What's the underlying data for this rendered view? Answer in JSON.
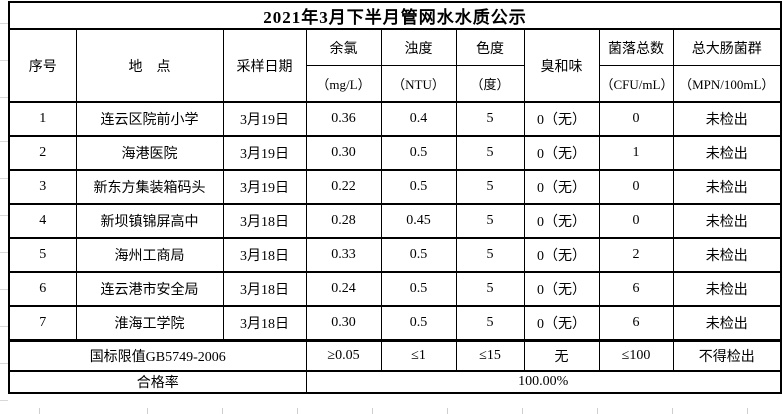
{
  "title": "2021年3月下半月管网水水质公示",
  "colors": {
    "text": "#000000",
    "background": "#ffffff",
    "border": "#000000",
    "sheet_gridline": "#cfcfcf"
  },
  "table": {
    "column_keys": [
      "no",
      "location",
      "date",
      "chlorine",
      "turbidity",
      "color",
      "odor",
      "colony",
      "coliform"
    ],
    "columns": [
      {
        "label": "序号",
        "unit": ""
      },
      {
        "label": "地　点",
        "unit": ""
      },
      {
        "label": "采样日期",
        "unit": ""
      },
      {
        "label": "余氯",
        "unit": "（mg/L）"
      },
      {
        "label": "浊度",
        "unit": "（NTU）"
      },
      {
        "label": "色度",
        "unit": "（度）"
      },
      {
        "label": "臭和味",
        "unit": ""
      },
      {
        "label": "菌落总数",
        "unit": "（CFU/mL）"
      },
      {
        "label": "总大肠菌群",
        "unit": "（MPN/100mL）"
      }
    ],
    "rows": [
      [
        "1",
        "连云区院前小学",
        "3月19日",
        "0.36",
        "0.4",
        "5",
        "0（无）",
        "0",
        "未检出"
      ],
      [
        "2",
        "海港医院",
        "3月19日",
        "0.30",
        "0.5",
        "5",
        "0（无）",
        "1",
        "未检出"
      ],
      [
        "3",
        "新东方集装箱码头",
        "3月19日",
        "0.22",
        "0.5",
        "5",
        "0（无）",
        "0",
        "未检出"
      ],
      [
        "4",
        "新坝镇锦屏高中",
        "3月18日",
        "0.28",
        "0.45",
        "5",
        "0（无）",
        "0",
        "未检出"
      ],
      [
        "5",
        "海州工商局",
        "3月18日",
        "0.33",
        "0.5",
        "5",
        "0（无）",
        "2",
        "未检出"
      ],
      [
        "6",
        "连云港市安全局",
        "3月18日",
        "0.24",
        "0.5",
        "5",
        "0（无）",
        "6",
        "未检出"
      ],
      [
        "7",
        "淮海工学院",
        "3月18日",
        "0.30",
        "0.5",
        "5",
        "0（无）",
        "6",
        "未检出"
      ]
    ],
    "limits": {
      "label": "国标限值GB5749-2006",
      "values": [
        "≥0.05",
        "≤1",
        "≤15",
        "无",
        "≤100",
        "不得检出"
      ]
    },
    "pass_rate": {
      "label": "合格率",
      "value": "100.00%"
    }
  }
}
